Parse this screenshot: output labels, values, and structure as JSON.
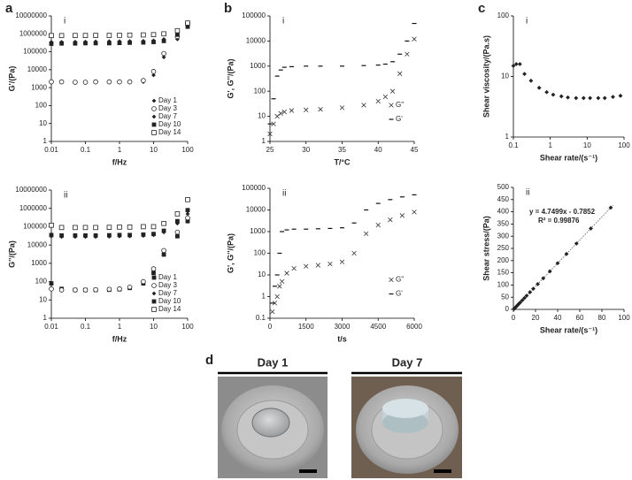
{
  "chart_data": [
    {
      "type": "scatter",
      "panel": "a",
      "label": "i",
      "y_label": "G'/(Pa)",
      "x_label": "f/Hz",
      "xlog": true,
      "ylog": true,
      "xlim": [
        0.01,
        100
      ],
      "xticks": [
        0.01,
        0.1,
        1,
        10,
        100
      ],
      "ylim": [
        1,
        10000000
      ],
      "yticks": [
        1,
        10,
        100,
        1000,
        10000,
        100000,
        1000000,
        10000000
      ],
      "legend": "lower right",
      "x": [
        0.01,
        0.02,
        0.05,
        0.1,
        0.2,
        0.5,
        1,
        2,
        5,
        10,
        20,
        50,
        100
      ],
      "series": [
        {
          "name": "Day 1",
          "color": "#222222",
          "marker": "diamond",
          "values": [
            2000,
            2000,
            2100,
            2100,
            2000,
            2000,
            2000,
            2000,
            2100,
            5000,
            50000,
            500000,
            3000000
          ]
        },
        {
          "name": "Day 3",
          "color": "#222222",
          "marker": "circle-open",
          "values": [
            2100,
            2100,
            2000,
            2000,
            2100,
            2100,
            2100,
            2100,
            2500,
            8000,
            80000,
            700000,
            4000000
          ]
        },
        {
          "name": "Day 7",
          "color": "#222222",
          "marker": "diamond",
          "values": [
            350000,
            350000,
            360000,
            360000,
            370000,
            380000,
            380000,
            390000,
            400000,
            420000,
            500000,
            1200000,
            3000000
          ]
        },
        {
          "name": "Day 10",
          "color": "#222222",
          "marker": "square",
          "values": [
            280000,
            290000,
            290000,
            300000,
            300000,
            300000,
            310000,
            320000,
            330000,
            350000,
            400000,
            900000,
            2500000
          ]
        },
        {
          "name": "Day 14",
          "color": "#222222",
          "marker": "square-open",
          "values": [
            800000,
            800000,
            810000,
            810000,
            820000,
            820000,
            830000,
            850000,
            870000,
            900000,
            1000000,
            1500000,
            4000000
          ]
        }
      ]
    },
    {
      "type": "scatter",
      "label": "ii",
      "y_label": "G''/(Pa)",
      "x_label": "f/Hz",
      "xlog": true,
      "ylog": true,
      "xlim": [
        0.01,
        100
      ],
      "xticks": [
        0.01,
        0.1,
        1,
        10,
        100
      ],
      "ylim": [
        1,
        10000000
      ],
      "yticks": [
        1,
        10,
        100,
        1000,
        10000,
        100000,
        1000000,
        10000000
      ],
      "legend": "lower right",
      "x": [
        0.01,
        0.02,
        0.05,
        0.1,
        0.2,
        0.5,
        1,
        2,
        5,
        10,
        20,
        50,
        100
      ],
      "series": [
        {
          "name": "Day 1",
          "color": "#222222",
          "marker": "square",
          "values": [
            80,
            40,
            35,
            35,
            35,
            36,
            38,
            45,
            80,
            300,
            3000,
            30000,
            200000
          ]
        },
        {
          "name": "Day 3",
          "color": "#222222",
          "marker": "circle-open",
          "values": [
            40,
            35,
            35,
            35,
            36,
            38,
            40,
            50,
            100,
            500,
            5000,
            50000,
            300000
          ]
        },
        {
          "name": "Day 7",
          "color": "#222222",
          "marker": "diamond",
          "values": [
            30000,
            28000,
            28000,
            28000,
            28000,
            29000,
            30000,
            30000,
            32000,
            35000,
            50000,
            150000,
            500000
          ]
        },
        {
          "name": "Day 10",
          "color": "#222222",
          "marker": "square",
          "values": [
            35000,
            33000,
            33000,
            33000,
            33000,
            34000,
            35000,
            35000,
            37000,
            40000,
            60000,
            200000,
            800000
          ]
        },
        {
          "name": "Day 14",
          "color": "#222222",
          "marker": "square-open",
          "values": [
            120000,
            90000,
            90000,
            90000,
            90000,
            92000,
            95000,
            95000,
            100000,
            100000,
            150000,
            500000,
            3000000
          ]
        }
      ]
    },
    {
      "type": "scatter",
      "panel": "b",
      "label": "i",
      "y_label": "G', G''/(Pa)",
      "x_label": "T/°C",
      "ylog": true,
      "xlim": [
        25,
        45
      ],
      "xticks": [
        25,
        30,
        35,
        40,
        45
      ],
      "ylim": [
        1,
        100000
      ],
      "yticks": [
        1,
        10,
        100,
        1000,
        10000,
        100000
      ],
      "legend": "right",
      "x": [
        25,
        25.5,
        26,
        26.5,
        27,
        28,
        30,
        32,
        35,
        38,
        40,
        41,
        42,
        43,
        44,
        45
      ],
      "series": [
        {
          "name": "G''",
          "color": "#333333",
          "marker": "x",
          "values": [
            2,
            5,
            10,
            13,
            15,
            17,
            18,
            19,
            22,
            28,
            40,
            60,
            100,
            500,
            3000,
            12000
          ]
        },
        {
          "name": "G'",
          "color": "#111111",
          "marker": "dash",
          "values": [
            5,
            50,
            400,
            700,
            900,
            950,
            1000,
            1000,
            1000,
            1050,
            1100,
            1200,
            1500,
            3000,
            10000,
            50000
          ]
        }
      ]
    },
    {
      "type": "scatter",
      "label": "ii",
      "y_label": "G', G''/(Pa)",
      "x_label": "t/s",
      "ylog": true,
      "xlim": [
        0,
        6000
      ],
      "xticks": [
        0,
        1500,
        3000,
        4500,
        6000
      ],
      "ylim": [
        0.1,
        100000
      ],
      "yticks": [
        0.1,
        1,
        10,
        100,
        1000,
        10000,
        100000
      ],
      "legend": "right",
      "x": [
        100,
        200,
        300,
        400,
        500,
        700,
        1000,
        1500,
        2000,
        2500,
        3000,
        3500,
        4000,
        4500,
        5000,
        5500,
        6000
      ],
      "series": [
        {
          "name": "G''",
          "color": "#333333",
          "marker": "x",
          "values": [
            0.2,
            0.5,
            1,
            3,
            5,
            12,
            20,
            25,
            28,
            32,
            40,
            100,
            800,
            2000,
            3500,
            5500,
            8000
          ]
        },
        {
          "name": "G'",
          "color": "#111111",
          "marker": "dash",
          "values": [
            0.5,
            3,
            10,
            100,
            1000,
            1200,
            1300,
            1300,
            1350,
            1400,
            1500,
            2500,
            10000,
            20000,
            30000,
            40000,
            50000
          ]
        }
      ]
    },
    {
      "type": "scatter",
      "panel": "c",
      "label": "i",
      "y_label": "Shear viscosity/(Pa.s)",
      "x_label": "Shear rate/(s⁻¹)",
      "xlog": true,
      "ylog": true,
      "xlim": [
        0.1,
        100
      ],
      "xticks": [
        0.1,
        1,
        10,
        100
      ],
      "ylim": [
        1,
        100
      ],
      "yticks": [
        1,
        10,
        100
      ],
      "x": [
        0.1,
        0.12,
        0.15,
        0.2,
        0.3,
        0.5,
        0.8,
        1.2,
        2,
        3,
        5,
        8,
        12,
        20,
        30,
        50,
        80
      ],
      "series": [
        {
          "name": "Shear viscosity",
          "color": "#222222",
          "marker": "diamond",
          "values": [
            15,
            16,
            16,
            11,
            8.5,
            6.5,
            5.5,
            5,
            4.7,
            4.5,
            4.4,
            4.4,
            4.4,
            4.4,
            4.4,
            4.6,
            4.8
          ]
        }
      ]
    },
    {
      "type": "scatter",
      "label": "ii",
      "y_label": "Shear stress/(Pa)",
      "x_label": "Shear rate/(s⁻¹)",
      "xlim": [
        0,
        100
      ],
      "xticks": [
        0,
        20,
        40,
        60,
        80,
        100
      ],
      "ylim": [
        0,
        500
      ],
      "yticks": [
        0,
        50,
        100,
        150,
        200,
        250,
        300,
        350,
        400,
        450,
        500
      ],
      "x": [
        0.5,
        1,
        2,
        3,
        4,
        5,
        6,
        8,
        10,
        12,
        15,
        18,
        22,
        27,
        33,
        40,
        48,
        57,
        70,
        88
      ],
      "series": [
        {
          "name": "Shear stress",
          "color": "#222222",
          "marker": "diamond",
          "values": [
            1.6,
            4,
            8.7,
            13.5,
            18.2,
            23,
            27.7,
            37.2,
            46.7,
            56.2,
            70.5,
            84.7,
            103.7,
            127.5,
            156,
            189.2,
            227.2,
            270,
            331.7,
            417.2
          ]
        }
      ],
      "trendline": {
        "equation": "y = 4.7499x - 0.7852",
        "r2": "R² = 0.99876",
        "slope": 4.7499,
        "intercept": -0.7852
      }
    }
  ],
  "photos": {
    "panel": "d",
    "captions": [
      "Day 1",
      "Day 7"
    ]
  }
}
